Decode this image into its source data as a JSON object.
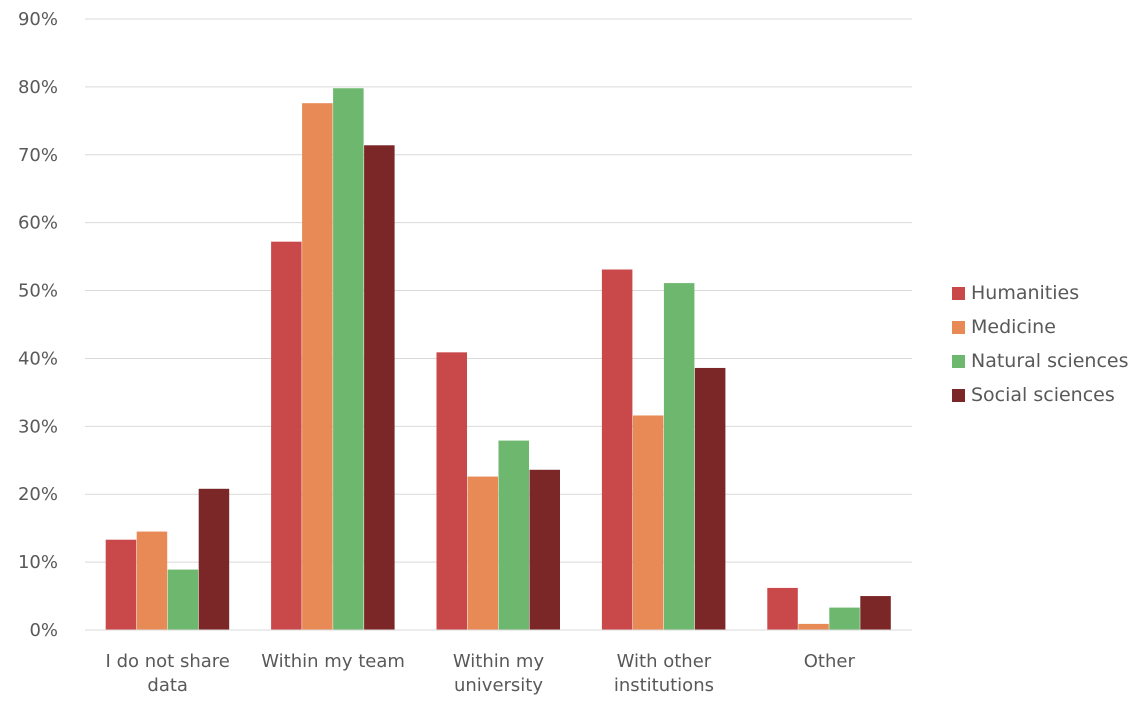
{
  "chart_data": {
    "type": "bar",
    "categories": [
      [
        "I do not share",
        "data"
      ],
      [
        "Within my team"
      ],
      [
        "Within my",
        "university"
      ],
      [
        "With other",
        "institutions"
      ],
      [
        "Other"
      ]
    ],
    "series": [
      {
        "name": "Humanities",
        "color": "#c9484a",
        "values": [
          13.3,
          57.2,
          40.9,
          53.1,
          6.2
        ]
      },
      {
        "name": "Medicine",
        "color": "#e88a55",
        "values": [
          14.5,
          77.6,
          22.6,
          31.6,
          0.9
        ]
      },
      {
        "name": "Natural sciences",
        "color": "#6db86e",
        "values": [
          8.9,
          79.8,
          27.9,
          51.1,
          3.3
        ]
      },
      {
        "name": "Social sciences",
        "color": "#7b2727",
        "values": [
          20.8,
          71.4,
          23.6,
          38.6,
          5.0
        ]
      }
    ],
    "y_ticks": [
      "0%",
      "10%",
      "20%",
      "30%",
      "40%",
      "50%",
      "60%",
      "70%",
      "80%",
      "90%"
    ],
    "ylim": [
      0,
      90
    ],
    "grid": true,
    "legend_position": "right"
  }
}
